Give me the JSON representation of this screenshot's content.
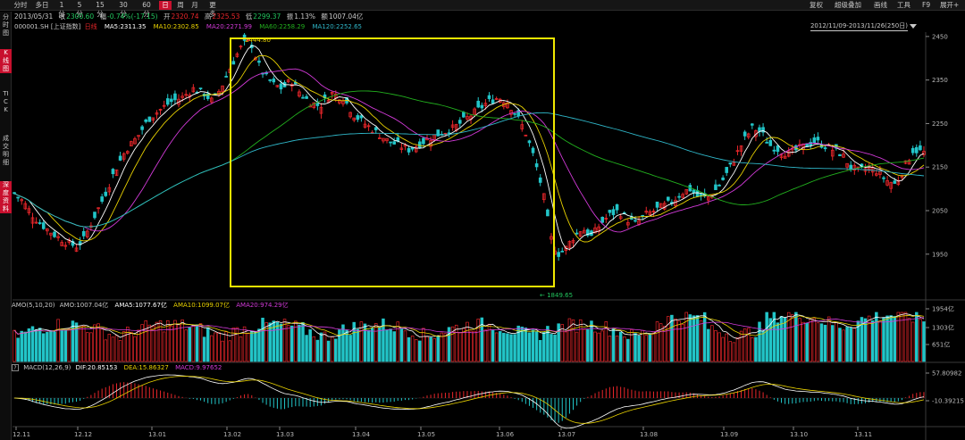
{
  "toolbar": {
    "tabs": [
      "分时",
      "多日",
      "1分",
      "5分",
      "15分",
      "30分",
      "60分",
      "日",
      "周",
      "月",
      "更多"
    ],
    "active_tab": "日",
    "right": [
      "复权",
      "超级叠加",
      "画线",
      "工具",
      "F9",
      "展开+"
    ]
  },
  "side_tabs": [
    "分时图",
    "K线图",
    "TICK",
    "成交明细",
    "深度资料"
  ],
  "side_active": "K线图",
  "quote": {
    "date": "2013/05/31",
    "close_label": "收",
    "close": "2300.60",
    "change_label": "幅",
    "change": "-0.74%(-17.15)",
    "open_label": "开",
    "open": "2320.74",
    "high_label": "高",
    "high": "2325.53",
    "low_label": "低",
    "low": "2299.37",
    "amplitude_label": "振",
    "amplitude": "1.13%",
    "amount_label": "额",
    "amount": "1007.04亿"
  },
  "ma_line": {
    "symbol": "000001.SH [上证指数]",
    "period": "日线",
    "ma5": "MA5:2311.35",
    "ma10": "MA10:2302.85",
    "ma20": "MA20:2271.99",
    "ma60": "MA60:2258.29",
    "ma120": "MA120:2252.65"
  },
  "range": "2012/11/09-2013/11/26(250日)",
  "annotations": {
    "high_label": "2444.80",
    "low_label": "← 1849.65"
  },
  "amo_header": {
    "name": "AMO(5,10,20)",
    "amo": "AMO:1007.04亿",
    "amo5": "AMA5:1077.67亿",
    "amo10": "AMA10:1099.07亿",
    "amo20": "AMA20:974.29亿"
  },
  "macd_header": {
    "help": "?",
    "name": "MACD(12,26,9)",
    "dif": "DIF:20.85153",
    "dea": "DEA:15.86327",
    "macd": "MACD:9.97652"
  },
  "colors": {
    "up": "#e8262a",
    "down": "#22c5c8",
    "ma5": "#ffffff",
    "ma10": "#e8d100",
    "ma20": "#d23ad8",
    "ma60": "#22b01e",
    "ma120": "#2fb6c8",
    "highlight": "#f0e800"
  },
  "chart_data": [
    {
      "type": "candlestick",
      "title": "000001.SH [上证指数] 日线",
      "y_ticks": [
        "2450",
        "2350",
        "2250",
        "2150",
        "2050",
        "1950"
      ],
      "ylim": [
        1849.65,
        2444.8
      ],
      "x_ticks": [
        "12.11",
        "12.12",
        "13.01",
        "13.02",
        "13.03",
        "13.04",
        "13.05",
        "13.06",
        "13.07",
        "13.08",
        "13.09",
        "13.10",
        "13.11"
      ],
      "series": [
        {
          "name": "MA5",
          "value": 2311.35
        },
        {
          "name": "MA10",
          "value": 2302.85
        },
        {
          "name": "MA20",
          "value": 2271.99
        },
        {
          "name": "MA60",
          "value": 2258.29
        },
        {
          "name": "MA120",
          "value": 2252.65
        }
      ],
      "high": 2444.8,
      "low": 1849.65
    },
    {
      "type": "bar",
      "title": "AMO(5,10,20)",
      "y_ticks": [
        "1954亿",
        "1303亿",
        "651亿"
      ],
      "series": [
        {
          "name": "AMO",
          "value": 1007.04
        },
        {
          "name": "AMA5",
          "value": 1077.67
        },
        {
          "name": "AMA10",
          "value": 1099.07
        },
        {
          "name": "AMA20",
          "value": 974.29
        }
      ]
    },
    {
      "type": "bar",
      "title": "MACD(12,26,9)",
      "y_ticks": [
        "57.80982",
        "-10.39215"
      ],
      "series": [
        {
          "name": "DIF",
          "value": 20.85153
        },
        {
          "name": "DEA",
          "value": 15.86327
        },
        {
          "name": "MACD",
          "value": 9.97652
        }
      ]
    }
  ]
}
